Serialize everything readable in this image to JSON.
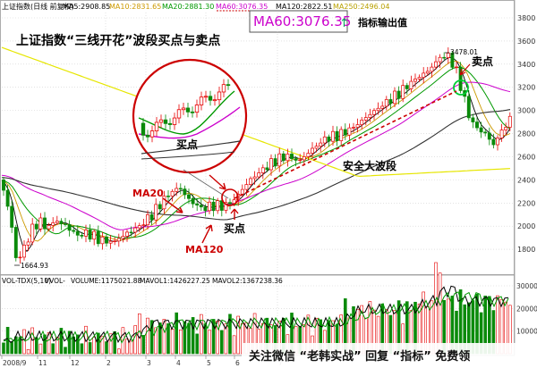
{
  "header": {
    "items": [
      {
        "text": "上证指数(日线 前复权)",
        "color": "#000000"
      },
      {
        "text": "MA5:2908.85",
        "color": "#000000"
      },
      {
        "text": "MA10:2831.65",
        "color": "#cc9900"
      },
      {
        "text": "MA20:2881.30",
        "color": "#009900"
      },
      {
        "text": "MA60:3076.35",
        "color": "#cc00cc"
      },
      {
        "text": "MA120:2822.51",
        "color": "#000000"
      },
      {
        "text": "MA250:2496.04",
        "color": "#e6b800"
      }
    ],
    "callout": "MA60:3076.35",
    "callout_note": "指标输出值"
  },
  "title": "上证指数“三线开花”波段买点与卖点",
  "annotations": {
    "inset_buy": "买点",
    "ma20": "MA20",
    "ma120": "MA120",
    "buy": "买点",
    "sell": "卖点",
    "wave": "安全大波段",
    "high": "3478.01",
    "low": "1664.93"
  },
  "volume_header": {
    "items": [
      {
        "text": "VOL-TDX(5,10)",
        "color": "#000000"
      },
      {
        "text": "VVOL-",
        "color": "#000000"
      },
      {
        "text": "VOLUME:1175021.88",
        "color": "#000000"
      },
      {
        "text": "MAVOL1:1426227.25",
        "color": "#000000"
      },
      {
        "text": "MAVOL2:1367238.36",
        "color": "#000000"
      }
    ]
  },
  "xaxis": [
    "2008/9",
    "11",
    "12",
    "2",
    "3",
    "4",
    "5",
    "6",
    "7"
  ],
  "watermark": "关注微信 “老韩实战” 回复 “指标” 免费领",
  "colors": {
    "up": "#e60000",
    "down": "#0a8a0a",
    "ma5": "#000000",
    "ma10": "#cc9900",
    "ma20": "#009900",
    "ma60": "#cc00cc",
    "ma120": "#333333",
    "ma250": "#e6e600",
    "accent": "#cc00cc",
    "annot": "#cc0000"
  },
  "chart_data": [
    {
      "type": "candlestick",
      "title": "上证指数“三线开花”波段买点与卖点",
      "ylim": [
        1600,
        3800
      ],
      "yticks": [
        1800,
        2000,
        2200,
        2400,
        2600,
        2800,
        3000,
        3200,
        3400,
        3600,
        3800
      ],
      "key_points": {
        "low": 1664.93,
        "high": 3478.01
      },
      "series": [
        {
          "name": "MA60",
          "last": 3076.35
        },
        {
          "name": "MA120",
          "last": 2822.51
        },
        {
          "name": "MA250",
          "last": 2496.04
        }
      ]
    },
    {
      "type": "bar",
      "title": "VOL-TDX(5,10)",
      "ylim": [
        0,
        30000
      ],
      "yticks": [
        10000,
        20000,
        30000
      ]
    }
  ]
}
